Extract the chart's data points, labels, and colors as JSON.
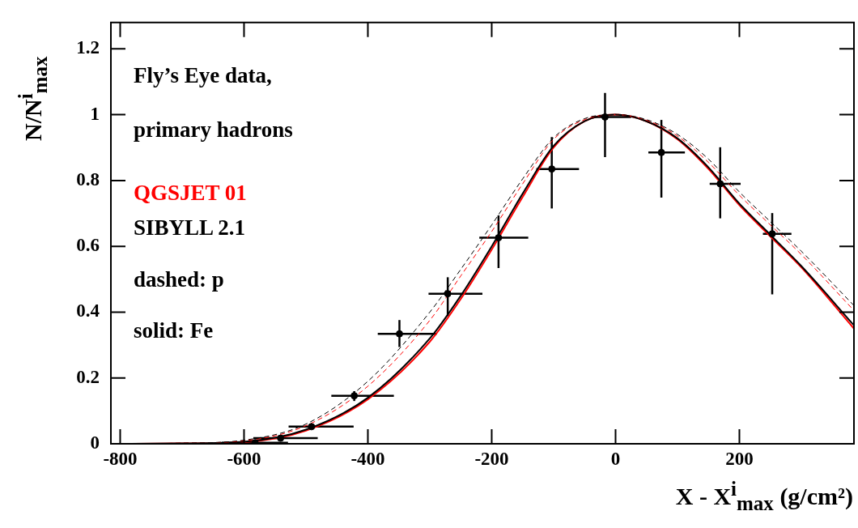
{
  "chart_data": {
    "type": "line",
    "xlabel": "X - X$^{i}$$_{max}$ (g/cm²)",
    "ylabel": "N/N$^{i}$$_{max}$",
    "annotations": [
      "Fly’s Eye data,",
      "primary hadrons",
      "QGSJET 01",
      "SIBYLL 2.1",
      "dashed: p",
      "solid: Fe"
    ],
    "xlim": [
      -815,
      385
    ],
    "xticks": [
      -800,
      -600,
      -400,
      -200,
      0,
      200
    ],
    "ylim": [
      0,
      1.28
    ],
    "yticks": [
      0,
      0.2,
      0.4,
      0.6,
      0.8,
      1,
      1.2
    ],
    "grid": false,
    "legend": false,
    "series": [
      {
        "type": "scatter",
        "color": "#000000",
        "marker": "circle",
        "x": [
          -582,
          -541,
          -491,
          -422,
          -349,
          -271,
          -189,
          -103,
          -17,
          74,
          169,
          253
        ],
        "values": [
          0.003,
          0.017,
          0.052,
          0.146,
          0.334,
          0.456,
          0.626,
          0.835,
          0.993,
          0.885,
          0.79,
          0.638
        ],
        "errors": [
          null,
          null,
          null,
          [
            0.13,
            0.16
          ],
          [
            0.294,
            0.376
          ],
          [
            0.388,
            0.506
          ],
          [
            0.534,
            0.694
          ],
          [
            0.715,
            0.932
          ],
          [
            0.871,
            1.066
          ],
          [
            0.748,
            0.984
          ],
          [
            0.685,
            0.901
          ],
          [
            0.454,
            0.701
          ]
        ],
        "xerrors": [
          [
            -636,
            -529
          ],
          [
            -585,
            -481
          ],
          [
            -528,
            -423
          ],
          [
            -459,
            -358
          ],
          [
            -384,
            -289
          ],
          [
            -302,
            -215
          ],
          [
            -220,
            -141
          ],
          [
            -128,
            -59
          ],
          [
            -38,
            25
          ],
          [
            53,
            112
          ],
          [
            152,
            202
          ],
          [
            238,
            284
          ]
        ]
      },
      {
        "color": "#000000",
        "line_style": "dashed",
        "x": [
          -815,
          -700,
          -600,
          -500,
          -400,
          -300,
          -250,
          -200,
          -150,
          -100,
          -50,
          0,
          50,
          100,
          150,
          200,
          250,
          300,
          385
        ],
        "values": [
          0,
          0.002,
          0.011,
          0.06,
          0.19,
          0.4,
          0.53,
          0.665,
          0.805,
          0.93,
          0.988,
          1.0,
          0.985,
          0.94,
          0.865,
          0.765,
          0.675,
          0.585,
          0.42
        ]
      },
      {
        "color": "#ff0000",
        "line_style": "dashed",
        "x": [
          -815,
          -700,
          -600,
          -500,
          -400,
          -300,
          -250,
          -200,
          -150,
          -100,
          -50,
          0,
          50,
          100,
          150,
          200,
          250,
          300,
          385
        ],
        "values": [
          0,
          0.002,
          0.009,
          0.055,
          0.175,
          0.375,
          0.51,
          0.645,
          0.79,
          0.925,
          0.985,
          1.0,
          0.983,
          0.935,
          0.855,
          0.755,
          0.665,
          0.575,
          0.405
        ]
      },
      {
        "color": "#000000",
        "line_style": "solid",
        "x": [
          -815,
          -700,
          -600,
          -500,
          -400,
          -300,
          -250,
          -200,
          -150,
          -100,
          -50,
          0,
          50,
          100,
          150,
          200,
          250,
          300,
          385
        ],
        "values": [
          0,
          0.001,
          0.006,
          0.043,
          0.14,
          0.32,
          0.45,
          0.6,
          0.76,
          0.905,
          0.98,
          1.0,
          0.98,
          0.928,
          0.84,
          0.73,
          0.635,
          0.54,
          0.36
        ]
      },
      {
        "color": "#ff0000",
        "line_style": "solid",
        "x": [
          -815,
          -700,
          -600,
          -500,
          -400,
          -300,
          -250,
          -200,
          -150,
          -100,
          -50,
          0,
          50,
          100,
          150,
          200,
          250,
          300,
          385
        ],
        "values": [
          0,
          0.001,
          0.005,
          0.04,
          0.135,
          0.31,
          0.44,
          0.59,
          0.75,
          0.9,
          0.98,
          1.0,
          0.98,
          0.925,
          0.835,
          0.725,
          0.63,
          0.536,
          0.35
        ]
      }
    ]
  }
}
